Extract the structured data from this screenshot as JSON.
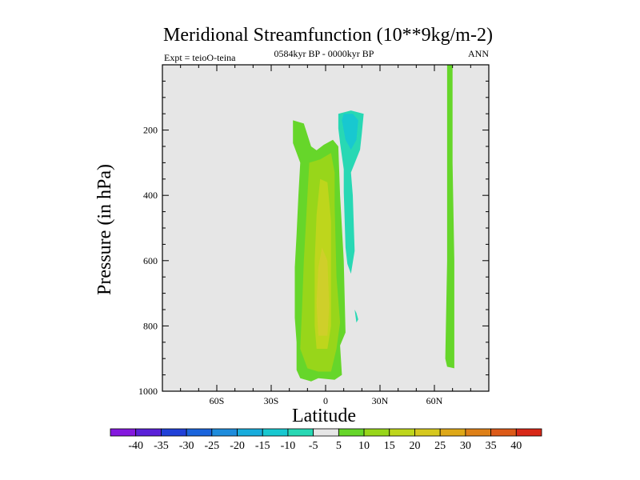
{
  "chart_data": {
    "type": "heatmap",
    "title": "Meridional Streamfunction (10**9kg/m-2)",
    "subtitle": "0584kyr BP - 0000kyr BP",
    "left_label": "Expt = teioO-teina",
    "right_label": "ANN",
    "xlabel": "Latitude",
    "ylabel": "Pressure (in hPa)",
    "xlim": [
      -90,
      90
    ],
    "ylim": [
      1000,
      0
    ],
    "x_ticks": [
      {
        "value": -60,
        "label": "60S"
      },
      {
        "value": -30,
        "label": "30S"
      },
      {
        "value": 0,
        "label": "0"
      },
      {
        "value": 30,
        "label": "30N"
      },
      {
        "value": 60,
        "label": "60N"
      }
    ],
    "y_ticks": [
      {
        "value": 200,
        "label": "200"
      },
      {
        "value": 400,
        "label": "400"
      },
      {
        "value": 600,
        "label": "600"
      },
      {
        "value": 800,
        "label": "800"
      },
      {
        "value": 1000,
        "label": "1000"
      }
    ],
    "background_color": "#e6e6e6",
    "contour_regions": [
      {
        "name": "positive-cell-outer",
        "level": 5,
        "color": "#66d62a",
        "points": [
          [
            -17,
            775
          ],
          [
            -16,
            850
          ],
          [
            -16,
            935
          ],
          [
            -14,
            960
          ],
          [
            -8,
            970
          ],
          [
            -4,
            960
          ],
          [
            5,
            965
          ],
          [
            9,
            950
          ],
          [
            8,
            860
          ],
          [
            11,
            820
          ],
          [
            10,
            600
          ],
          [
            8,
            400
          ],
          [
            7,
            250
          ],
          [
            4,
            230
          ],
          [
            -1,
            245
          ],
          [
            -5,
            262
          ],
          [
            -8,
            250
          ],
          [
            -12,
            180
          ],
          [
            -18,
            170
          ],
          [
            -18,
            240
          ],
          [
            -14,
            300
          ],
          [
            -15,
            400
          ],
          [
            -16,
            520
          ],
          [
            -17,
            620
          ]
        ]
      },
      {
        "name": "positive-cell-inner",
        "level": 10,
        "color": "#98d61a",
        "points": [
          [
            -14,
            870
          ],
          [
            -10,
            930
          ],
          [
            -4,
            940
          ],
          [
            3,
            940
          ],
          [
            6,
            870
          ],
          [
            8,
            790
          ],
          [
            6,
            650
          ],
          [
            5,
            430
          ],
          [
            5,
            330
          ],
          [
            3,
            270
          ],
          [
            -3,
            290
          ],
          [
            -9,
            300
          ],
          [
            -10,
            400
          ],
          [
            -11,
            500
          ],
          [
            -12,
            600
          ],
          [
            -13,
            750
          ]
        ]
      },
      {
        "name": "positive-cell-core",
        "level": 15,
        "color": "#bed61c",
        "points": [
          [
            -6,
            800
          ],
          [
            -5,
            870
          ],
          [
            1,
            870
          ],
          [
            3,
            800
          ],
          [
            3,
            650
          ],
          [
            3,
            480
          ],
          [
            1,
            360
          ],
          [
            -3,
            350
          ],
          [
            -5,
            460
          ],
          [
            -6,
            600
          ]
        ]
      },
      {
        "name": "positive-cell-max",
        "level": 20,
        "color": "#cfcf2a",
        "points": [
          [
            -5,
            730
          ],
          [
            -4,
            830
          ],
          [
            1,
            830
          ],
          [
            2,
            740
          ],
          [
            1,
            600
          ],
          [
            -2,
            560
          ],
          [
            -4,
            620
          ]
        ]
      },
      {
        "name": "negative-cell-outer",
        "level": -5,
        "color": "#28d8b4",
        "points": [
          [
            7,
            195
          ],
          [
            8,
            240
          ],
          [
            10,
            320
          ],
          [
            10,
            390
          ],
          [
            11,
            560
          ],
          [
            12,
            610
          ],
          [
            14,
            640
          ],
          [
            16,
            570
          ],
          [
            15,
            400
          ],
          [
            14,
            330
          ],
          [
            19,
            260
          ],
          [
            20,
            210
          ],
          [
            21,
            150
          ],
          [
            14,
            140
          ],
          [
            7,
            150
          ]
        ]
      },
      {
        "name": "negative-cell-inner",
        "level": -10,
        "color": "#18c8d0",
        "points": [
          [
            9,
            170
          ],
          [
            11,
            230
          ],
          [
            14,
            260
          ],
          [
            17,
            230
          ],
          [
            18,
            170
          ],
          [
            15,
            150
          ],
          [
            10,
            150
          ]
        ]
      },
      {
        "name": "negative-small-patch",
        "level": -5,
        "color": "#28d8b4",
        "points": [
          [
            16,
            750
          ],
          [
            17,
            790
          ],
          [
            18,
            780
          ],
          [
            17,
            760
          ]
        ]
      },
      {
        "name": "north-strip",
        "level": 5,
        "color": "#66d62a",
        "points": [
          [
            67,
            0
          ],
          [
            67,
            300
          ],
          [
            67,
            600
          ],
          [
            66,
            900
          ],
          [
            67,
            925
          ],
          [
            71,
            930
          ],
          [
            71,
            600
          ],
          [
            70,
            300
          ],
          [
            70,
            0
          ]
        ]
      }
    ],
    "colorbar": {
      "labels": [
        "-40",
        "-35",
        "-30",
        "-25",
        "-20",
        "-15",
        "-10",
        "-5",
        "5",
        "10",
        "15",
        "20",
        "25",
        "30",
        "35",
        "40"
      ],
      "colors": [
        "#8418de",
        "#5a20d8",
        "#2040d8",
        "#1a64dc",
        "#1e8cdc",
        "#18acdc",
        "#18c8d0",
        "#28d8b4",
        "#e6e6e6",
        "#66d62a",
        "#98d61a",
        "#bed61c",
        "#d6c81e",
        "#dea818",
        "#de8018",
        "#dc5a18",
        "#d82818"
      ]
    }
  }
}
